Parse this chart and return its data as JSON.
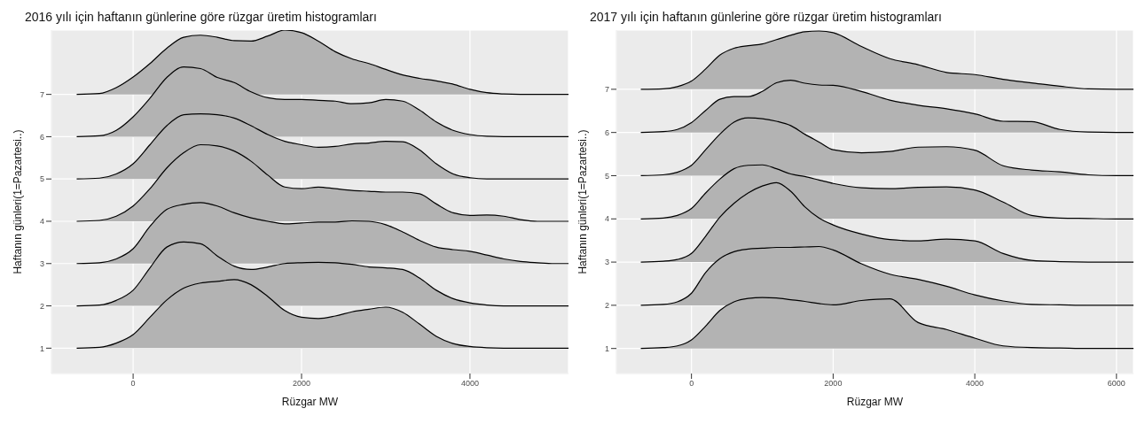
{
  "chart_data": [
    {
      "type": "area",
      "title": "2016 yılı için haftanın günlerine göre rüzgar üretim histogramları",
      "xlabel": "Rüzgar MW",
      "ylabel": "Haftanın günleri(1=Pazartesi..)",
      "x": [
        -670,
        -400,
        -200,
        0,
        200,
        400,
        600,
        800,
        1000,
        1200,
        1400,
        1600,
        1800,
        2000,
        2200,
        2400,
        2600,
        2800,
        3000,
        3200,
        3400,
        3600,
        3800,
        4000,
        4200,
        4400,
        4600,
        4800,
        5000,
        5170
      ],
      "series": [
        {
          "color": "#b3b3b3",
          "values": [
            1,
            1.02,
            1.12,
            1.32,
            1.73,
            2.14,
            2.42,
            2.54,
            2.58,
            2.62,
            2.5,
            2.22,
            1.89,
            1.73,
            1.7,
            1.76,
            1.86,
            1.92,
            1.97,
            1.85,
            1.57,
            1.28,
            1.11,
            1.04,
            1.01,
            1,
            1,
            1,
            1,
            1
          ]
        },
        {
          "color": "#b3b3b3",
          "values": [
            2,
            2.02,
            2.13,
            2.37,
            2.9,
            3.39,
            3.51,
            3.47,
            3.18,
            2.94,
            2.86,
            2.92,
            3.0,
            3.02,
            3.03,
            3.02,
            2.98,
            2.92,
            2.9,
            2.86,
            2.66,
            2.37,
            2.17,
            2.07,
            2.02,
            2,
            2,
            2,
            2,
            2
          ]
        },
        {
          "color": "#b3b3b3",
          "values": [
            3,
            3.02,
            3.11,
            3.35,
            3.88,
            4.28,
            4.4,
            4.44,
            4.36,
            4.2,
            4.08,
            4.0,
            3.94,
            3.96,
            3.98,
            3.98,
            4.01,
            4.0,
            3.92,
            3.75,
            3.55,
            3.39,
            3.33,
            3.29,
            3.2,
            3.11,
            3.05,
            3.02,
            3,
            3
          ]
        },
        {
          "color": "#b3b3b3",
          "values": [
            4,
            4.02,
            4.12,
            4.36,
            4.77,
            5.26,
            5.62,
            5.81,
            5.78,
            5.66,
            5.42,
            5.09,
            4.81,
            4.77,
            4.81,
            4.77,
            4.73,
            4.71,
            4.69,
            4.69,
            4.65,
            4.41,
            4.2,
            4.14,
            4.15,
            4.12,
            4.04,
            4,
            4,
            4
          ]
        },
        {
          "color": "#b3b3b3",
          "values": [
            5,
            5.02,
            5.12,
            5.36,
            5.81,
            6.26,
            6.52,
            6.54,
            6.52,
            6.44,
            6.26,
            6.05,
            5.89,
            5.81,
            5.75,
            5.77,
            5.83,
            5.85,
            5.89,
            5.88,
            5.69,
            5.36,
            5.12,
            5.03,
            5,
            5,
            5,
            5,
            5,
            5
          ]
        },
        {
          "color": "#b3b3b3",
          "values": [
            6,
            6.02,
            6.15,
            6.47,
            6.91,
            7.4,
            7.65,
            7.61,
            7.4,
            7.28,
            7.06,
            6.92,
            6.88,
            6.88,
            6.86,
            6.84,
            6.78,
            6.8,
            6.88,
            6.84,
            6.63,
            6.35,
            6.15,
            6.05,
            6.01,
            6,
            6,
            6,
            6,
            6
          ]
        },
        {
          "color": "#b3b3b3",
          "values": [
            7,
            7.02,
            7.16,
            7.41,
            7.73,
            8.09,
            8.35,
            8.4,
            8.35,
            8.27,
            8.26,
            8.38,
            8.52,
            8.46,
            8.26,
            8.01,
            7.84,
            7.73,
            7.59,
            7.46,
            7.38,
            7.32,
            7.24,
            7.12,
            7.04,
            7.01,
            7,
            7,
            7,
            7
          ]
        }
      ],
      "xlim": [
        -970,
        5170
      ],
      "xticks": [
        0,
        2000,
        4000
      ],
      "ylim": [
        0.4,
        8.52
      ],
      "yticks": [
        1,
        2,
        3,
        4,
        5,
        6,
        7
      ],
      "grid": true
    },
    {
      "type": "area",
      "title": "2017 yılı için haftanın günlerine göre rüzgar üretim histogramları",
      "xlabel": "Rüzgar MW",
      "ylabel": "Haftanın günleri(1=Pazartesi..)",
      "x": [
        -715,
        -400,
        -200,
        0,
        200,
        400,
        600,
        800,
        1000,
        1200,
        1400,
        1600,
        1800,
        2000,
        2400,
        2800,
        3200,
        3600,
        4000,
        4400,
        4800,
        5200,
        5600,
        6000,
        6240
      ],
      "series": [
        {
          "color": "#b3b3b3",
          "values": [
            1,
            1.02,
            1.06,
            1.2,
            1.52,
            1.88,
            2.08,
            2.16,
            2.18,
            2.17,
            2.13,
            2.09,
            2.04,
            2.01,
            2.11,
            2.15,
            1.6,
            1.44,
            1.24,
            1.06,
            1.02,
            1.01,
            1,
            1,
            1
          ]
        },
        {
          "color": "#b3b3b3",
          "values": [
            2,
            2.02,
            2.08,
            2.28,
            2.76,
            3.08,
            3.24,
            3.3,
            3.32,
            3.34,
            3.34,
            3.35,
            3.36,
            3.28,
            2.96,
            2.72,
            2.6,
            2.44,
            2.24,
            2.1,
            2.02,
            2.01,
            2,
            2,
            2
          ]
        },
        {
          "color": "#b3b3b3",
          "values": [
            3,
            3.02,
            3.06,
            3.2,
            3.6,
            4.04,
            4.36,
            4.6,
            4.76,
            4.84,
            4.64,
            4.28,
            4.02,
            3.86,
            3.65,
            3.52,
            3.49,
            3.53,
            3.49,
            3.2,
            3.04,
            3.01,
            3,
            3,
            3
          ]
        },
        {
          "color": "#b3b3b3",
          "values": [
            4,
            4.02,
            4.08,
            4.24,
            4.6,
            4.92,
            5.16,
            5.24,
            5.25,
            5.16,
            5.04,
            4.98,
            4.9,
            4.82,
            4.72,
            4.7,
            4.73,
            4.74,
            4.67,
            4.39,
            4.08,
            4.02,
            4.01,
            4,
            4
          ]
        },
        {
          "color": "#b3b3b3",
          "values": [
            5,
            5.02,
            5.08,
            5.24,
            5.6,
            5.96,
            6.24,
            6.34,
            6.32,
            6.26,
            6.16,
            5.96,
            5.78,
            5.6,
            5.53,
            5.56,
            5.66,
            5.67,
            5.59,
            5.23,
            5.13,
            5.09,
            5.02,
            5,
            5
          ]
        },
        {
          "color": "#b3b3b3",
          "values": [
            6,
            6.02,
            6.07,
            6.23,
            6.51,
            6.77,
            6.83,
            6.83,
            6.95,
            7.15,
            7.21,
            7.14,
            7.1,
            7.09,
            6.95,
            6.75,
            6.63,
            6.55,
            6.43,
            6.26,
            6.25,
            6.07,
            6.01,
            6,
            6
          ]
        },
        {
          "color": "#b3b3b3",
          "values": [
            7,
            7.01,
            7.06,
            7.19,
            7.47,
            7.79,
            7.95,
            8.01,
            8.05,
            8.15,
            8.25,
            8.33,
            8.35,
            8.31,
            7.99,
            7.71,
            7.57,
            7.39,
            7.34,
            7.23,
            7.15,
            7.07,
            7.01,
            7,
            7
          ]
        }
      ],
      "xlim": [
        -1060,
        6240
      ],
      "xticks": [
        0,
        2000,
        4000,
        6000
      ],
      "ylim": [
        0.42,
        8.37
      ],
      "yticks": [
        1,
        2,
        3,
        4,
        5,
        6,
        7
      ],
      "grid": true
    }
  ]
}
